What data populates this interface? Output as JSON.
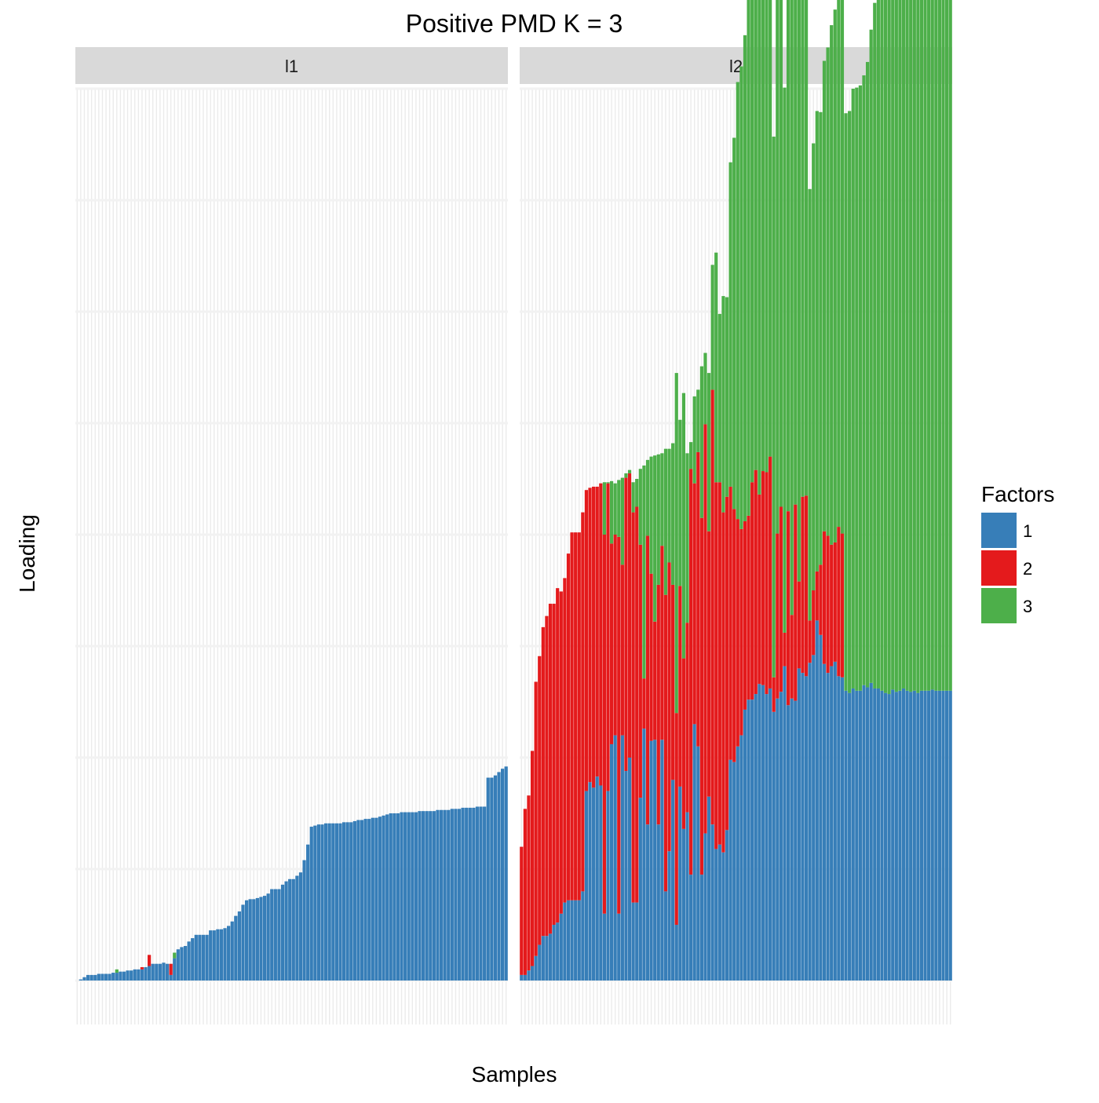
{
  "chart_data": {
    "type": "bar",
    "stacked": true,
    "title": "Positive PMD K = 3",
    "xlabel": "Samples",
    "ylabel": "Loading",
    "ylim": [
      0,
      8
    ],
    "x_tick_labels": "none",
    "y_tick_labels": "none",
    "grid": true,
    "legend": {
      "title": "Factors",
      "position": "right",
      "entries": [
        {
          "label": "1",
          "color": "#377EB8"
        },
        {
          "label": "2",
          "color": "#E41A1C"
        },
        {
          "label": "3",
          "color": "#4DAF4A"
        }
      ]
    },
    "stack_order": [
      "1",
      "2",
      "3"
    ],
    "series_names": [
      "1",
      "2",
      "3"
    ],
    "colors": {
      "1": "#377EB8",
      "2": "#E41A1C",
      "3": "#4DAF4A"
    },
    "panels": [
      {
        "label": "l1",
        "n_samples": 120,
        "bars": [
          [
            0,
            0,
            0
          ],
          [
            0.01,
            0,
            0
          ],
          [
            0.03,
            0,
            0
          ],
          [
            0.05,
            0,
            0
          ],
          [
            0.05,
            0,
            0
          ],
          [
            0.05,
            0,
            0
          ],
          [
            0.06,
            0,
            0
          ],
          [
            0.06,
            0,
            0
          ],
          [
            0.06,
            0,
            0
          ],
          [
            0.06,
            0,
            0
          ],
          [
            0.07,
            0,
            0
          ],
          [
            0.07,
            0,
            0.03
          ],
          [
            0.08,
            0,
            0
          ],
          [
            0.08,
            0,
            0
          ],
          [
            0.09,
            0,
            0
          ],
          [
            0.09,
            0,
            0
          ],
          [
            0.1,
            0,
            0
          ],
          [
            0.1,
            0,
            0
          ],
          [
            0.1,
            0.02,
            0
          ],
          [
            0.12,
            0,
            0
          ],
          [
            0.13,
            0.1,
            0
          ],
          [
            0.15,
            0,
            0
          ],
          [
            0.15,
            0,
            0
          ],
          [
            0.15,
            0,
            0
          ],
          [
            0.16,
            0,
            0
          ],
          [
            0.15,
            0,
            0
          ],
          [
            0.05,
            0.1,
            0
          ],
          [
            0.2,
            0,
            0.05
          ],
          [
            0.28,
            0,
            0
          ],
          [
            0.3,
            0,
            0
          ],
          [
            0.31,
            0,
            0
          ],
          [
            0.35,
            0,
            0
          ],
          [
            0.38,
            0,
            0
          ],
          [
            0.41,
            0,
            0
          ],
          [
            0.41,
            0,
            0
          ],
          [
            0.41,
            0,
            0
          ],
          [
            0.41,
            0,
            0
          ],
          [
            0.45,
            0,
            0
          ],
          [
            0.45,
            0,
            0
          ],
          [
            0.46,
            0,
            0
          ],
          [
            0.46,
            0,
            0
          ],
          [
            0.47,
            0,
            0
          ],
          [
            0.49,
            0,
            0
          ],
          [
            0.53,
            0,
            0
          ],
          [
            0.58,
            0,
            0
          ],
          [
            0.62,
            0,
            0
          ],
          [
            0.68,
            0,
            0
          ],
          [
            0.72,
            0,
            0
          ],
          [
            0.73,
            0,
            0
          ],
          [
            0.73,
            0,
            0
          ],
          [
            0.74,
            0,
            0
          ],
          [
            0.75,
            0,
            0
          ],
          [
            0.76,
            0,
            0
          ],
          [
            0.78,
            0,
            0
          ],
          [
            0.82,
            0,
            0
          ],
          [
            0.82,
            0,
            0
          ],
          [
            0.82,
            0,
            0
          ],
          [
            0.86,
            0,
            0
          ],
          [
            0.89,
            0,
            0
          ],
          [
            0.91,
            0,
            0
          ],
          [
            0.91,
            0,
            0
          ],
          [
            0.94,
            0,
            0
          ],
          [
            0.97,
            0,
            0
          ],
          [
            1.08,
            0,
            0
          ],
          [
            1.22,
            0,
            0
          ],
          [
            1.38,
            0,
            0
          ],
          [
            1.39,
            0,
            0
          ],
          [
            1.4,
            0,
            0
          ],
          [
            1.4,
            0,
            0
          ],
          [
            1.41,
            0,
            0
          ],
          [
            1.41,
            0,
            0
          ],
          [
            1.41,
            0,
            0
          ],
          [
            1.41,
            0,
            0
          ],
          [
            1.41,
            0,
            0
          ],
          [
            1.42,
            0,
            0
          ],
          [
            1.42,
            0,
            0
          ],
          [
            1.42,
            0,
            0
          ],
          [
            1.43,
            0,
            0
          ],
          [
            1.44,
            0,
            0
          ],
          [
            1.44,
            0,
            0
          ],
          [
            1.45,
            0,
            0
          ],
          [
            1.45,
            0,
            0
          ],
          [
            1.46,
            0,
            0
          ],
          [
            1.46,
            0,
            0
          ],
          [
            1.47,
            0,
            0
          ],
          [
            1.48,
            0,
            0
          ],
          [
            1.49,
            0,
            0
          ],
          [
            1.5,
            0,
            0
          ],
          [
            1.5,
            0,
            0
          ],
          [
            1.5,
            0,
            0
          ],
          [
            1.51,
            0,
            0
          ],
          [
            1.51,
            0,
            0
          ],
          [
            1.51,
            0,
            0
          ],
          [
            1.51,
            0,
            0
          ],
          [
            1.51,
            0,
            0
          ],
          [
            1.52,
            0,
            0
          ],
          [
            1.52,
            0,
            0
          ],
          [
            1.52,
            0,
            0
          ],
          [
            1.52,
            0,
            0
          ],
          [
            1.52,
            0,
            0
          ],
          [
            1.53,
            0,
            0
          ],
          [
            1.53,
            0,
            0
          ],
          [
            1.53,
            0,
            0
          ],
          [
            1.53,
            0,
            0
          ],
          [
            1.54,
            0,
            0
          ],
          [
            1.54,
            0,
            0
          ],
          [
            1.54,
            0,
            0
          ],
          [
            1.55,
            0,
            0
          ],
          [
            1.55,
            0,
            0
          ],
          [
            1.55,
            0,
            0
          ],
          [
            1.55,
            0,
            0
          ],
          [
            1.56,
            0,
            0
          ],
          [
            1.56,
            0,
            0
          ],
          [
            1.56,
            0,
            0
          ],
          [
            1.82,
            0,
            0
          ],
          [
            1.82,
            0,
            0
          ],
          [
            1.84,
            0,
            0
          ],
          [
            1.87,
            0,
            0
          ],
          [
            1.9,
            0,
            0
          ],
          [
            1.92,
            0,
            0
          ]
        ]
      },
      {
        "label": "l2",
        "n_samples": 120,
        "bars": [
          [
            0.05,
            1.15,
            0
          ],
          [
            0.05,
            1.49,
            0
          ],
          [
            0.09,
            1.57,
            0
          ],
          [
            0.13,
            1.93,
            0
          ],
          [
            0.22,
            2.46,
            0
          ],
          [
            0.32,
            2.59,
            0
          ],
          [
            0.4,
            2.77,
            0
          ],
          [
            0.4,
            2.87,
            0
          ],
          [
            0.42,
            2.96,
            0
          ],
          [
            0.5,
            2.88,
            0
          ],
          [
            0.52,
            3.0,
            0
          ],
          [
            0.6,
            2.89,
            0
          ],
          [
            0.7,
            2.91,
            0
          ],
          [
            0.72,
            3.11,
            0
          ],
          [
            0.72,
            3.3,
            0
          ],
          [
            0.72,
            3.3,
            0
          ],
          [
            0.72,
            3.3,
            0
          ],
          [
            0.8,
            3.4,
            0
          ],
          [
            1.7,
            2.7,
            0
          ],
          [
            1.78,
            2.64,
            0
          ],
          [
            1.73,
            2.7,
            0
          ],
          [
            1.83,
            2.6,
            0
          ],
          [
            1.75,
            2.71,
            0
          ],
          [
            0.6,
            3.4,
            0.47
          ],
          [
            1.7,
            2.76,
            0.01
          ],
          [
            2.12,
            1.8,
            0.56
          ],
          [
            2.2,
            1.8,
            0.46
          ],
          [
            0.6,
            3.38,
            0.51
          ],
          [
            2.2,
            1.53,
            0.78
          ],
          [
            1.88,
            2.63,
            0.04
          ],
          [
            2.0,
            2.55,
            0.03
          ],
          [
            0.7,
            3.5,
            0.27
          ],
          [
            0.7,
            3.55,
            0.25
          ],
          [
            1.64,
            2.27,
            0.68
          ],
          [
            2.26,
            0.45,
            1.91
          ],
          [
            1.4,
            2.59,
            0.68
          ],
          [
            2.15,
            1.5,
            1.05
          ],
          [
            2.16,
            1.06,
            1.49
          ],
          [
            1.4,
            2.15,
            1.17
          ],
          [
            2.16,
            1.74,
            0.83
          ],
          [
            0.8,
            2.66,
            1.31
          ],
          [
            1.16,
            2.59,
            1.02
          ],
          [
            1.8,
            1.75,
            1.27
          ],
          [
            0.5,
            1.9,
            3.05
          ],
          [
            1.74,
            1.8,
            1.49
          ],
          [
            1.36,
            1.53,
            2.38
          ],
          [
            1.51,
            1.7,
            1.52
          ],
          [
            0.95,
            3.64,
            0.24
          ],
          [
            2.3,
            2.16,
            0.78
          ],
          [
            2.1,
            2.64,
            0.56
          ],
          [
            0.95,
            3.2,
            1.36
          ],
          [
            1.32,
            3.67,
            0.64
          ],
          [
            1.65,
            2.38,
            1.42
          ],
          [
            1.4,
            3.9,
            1.12
          ],
          [
            1.18,
            3.29,
            2.06
          ],
          [
            1.22,
            3.25,
            1.51
          ],
          [
            1.15,
            3.05,
            1.94
          ],
          [
            1.35,
            2.99,
            1.79
          ],
          [
            1.98,
            2.45,
            2.91
          ],
          [
            1.96,
            2.27,
            3.33
          ],
          [
            2.1,
            2.04,
            3.92
          ],
          [
            2.2,
            1.85,
            4.15
          ],
          [
            2.43,
            1.69,
            4.36
          ],
          [
            2.52,
            1.65,
            4.69
          ],
          [
            2.52,
            1.95,
            4.95
          ],
          [
            2.57,
            2.01,
            5.23
          ],
          [
            2.66,
            1.7,
            5.89
          ],
          [
            2.65,
            1.92,
            5.92
          ],
          [
            2.57,
            1.99,
            5.9
          ],
          [
            2.62,
            2.08,
            5.91
          ],
          [
            2.41,
            0.31,
            4.85
          ],
          [
            2.53,
            1.48,
            4.93
          ],
          [
            2.59,
            1.66,
            4.61
          ],
          [
            2.82,
            0.3,
            4.89
          ],
          [
            2.47,
            1.74,
            4.74
          ],
          [
            2.53,
            0.75,
            5.56
          ],
          [
            2.51,
            1.76,
            5.71
          ],
          [
            2.8,
            0.78,
            5.38
          ],
          [
            2.76,
            1.58,
            5.47
          ],
          [
            2.73,
            1.62,
            5.32
          ],
          [
            2.85,
            0.38,
            3.87
          ],
          [
            2.92,
            0.58,
            4.01
          ],
          [
            3.23,
            0.44,
            4.13
          ],
          [
            3.1,
            0.63,
            4.06
          ],
          [
            2.84,
            1.19,
            4.22
          ],
          [
            2.76,
            1.23,
            4.38
          ],
          [
            2.82,
            1.09,
            4.66
          ],
          [
            2.86,
            1.07,
            4.78
          ],
          [
            2.73,
            1.34,
            4.81
          ],
          [
            2.72,
            1.29,
            4.95
          ],
          [
            2.6,
            0.0,
            5.18
          ],
          [
            2.58,
            0.0,
            5.22
          ],
          [
            2.62,
            0.0,
            5.38
          ],
          [
            2.6,
            0.0,
            5.41
          ],
          [
            2.6,
            0.0,
            5.43
          ],
          [
            2.65,
            0.0,
            5.47
          ],
          [
            2.63,
            0.0,
            5.61
          ],
          [
            2.67,
            0.0,
            5.86
          ],
          [
            2.62,
            0.0,
            6.15
          ],
          [
            2.62,
            0.0,
            6.2
          ],
          [
            2.6,
            0.0,
            6.24
          ],
          [
            2.58,
            0.0,
            6.28
          ],
          [
            2.57,
            0.0,
            6.3
          ],
          [
            2.61,
            0.0,
            6.34
          ],
          [
            2.59,
            0.0,
            6.39
          ],
          [
            2.6,
            0.0,
            6.43
          ],
          [
            2.62,
            0.0,
            6.49
          ],
          [
            2.6,
            0.0,
            6.55
          ],
          [
            2.59,
            0.0,
            6.59
          ],
          [
            2.6,
            0.0,
            6.61
          ],
          [
            2.58,
            0.0,
            6.63
          ],
          [
            2.6,
            0.0,
            6.65
          ],
          [
            2.6,
            0.0,
            6.66
          ],
          [
            2.6,
            0.0,
            6.68
          ],
          [
            2.61,
            0.0,
            6.7
          ],
          [
            2.6,
            0.0,
            6.72
          ],
          [
            2.6,
            0.0,
            6.73
          ],
          [
            2.6,
            0.0,
            6.74
          ],
          [
            2.6,
            0.0,
            6.75
          ],
          [
            2.6,
            0.0,
            6.76
          ]
        ]
      }
    ]
  }
}
